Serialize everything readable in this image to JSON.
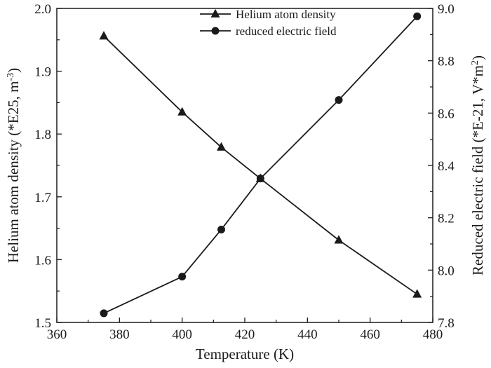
{
  "chart_data": {
    "type": "line",
    "title": "",
    "xlabel": "Temperature (K)",
    "ylabel_left": "Helium atom density (*E25, m",
    "ylabel_left_sup": "-3",
    "ylabel_left_end": ")",
    "ylabel_right": "Reduced electric field (*E-21, V*m",
    "ylabel_right_sup": "2",
    "ylabel_right_end": ")",
    "xlim": [
      360,
      480
    ],
    "ylim_left": [
      1.5,
      2.0
    ],
    "ylim_right": [
      7.8,
      9.0
    ],
    "x_ticks": [
      "360",
      "380",
      "400",
      "420",
      "440",
      "460",
      "480"
    ],
    "y_left_ticks": [
      "1.5",
      "1.6",
      "1.7",
      "1.8",
      "1.9",
      "2.0"
    ],
    "y_right_ticks": [
      "7.8",
      "8.0",
      "8.2",
      "8.4",
      "8.6",
      "8.8",
      "9.0"
    ],
    "grid": false,
    "legend_position": "top-center",
    "series": [
      {
        "name": "Helium atom density",
        "axis": "left",
        "marker": "triangle",
        "x": [
          375,
          400,
          412.5,
          425,
          450,
          475
        ],
        "y": [
          1.956,
          1.835,
          1.779,
          1.729,
          1.631,
          1.545
        ]
      },
      {
        "name": "reduced electric field",
        "axis": "right",
        "marker": "circle",
        "x": [
          375,
          400,
          412.5,
          425,
          450,
          475
        ],
        "y": [
          7.835,
          7.975,
          8.155,
          8.35,
          8.65,
          8.97
        ]
      }
    ],
    "colors": {
      "line": "#1a1a1a",
      "marker": "#1a1a1a"
    }
  }
}
